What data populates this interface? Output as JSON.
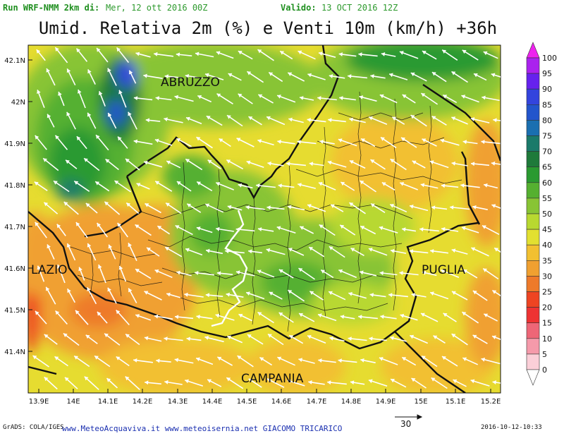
{
  "header": {
    "run_label": "Run WRF-NMM 2km di:",
    "run_value": "Mer, 12 ott 2016 00Z",
    "valid_label": "Valido:",
    "valid_value": "13 OCT 2016 12Z"
  },
  "title": "Umid. Relativa 2m (%) e Venti 10m (km/h) +36h",
  "lat_ticks": [
    "42.1N",
    "42N",
    "41.9N",
    "41.8N",
    "41.7N",
    "41.6N",
    "41.5N",
    "41.4N"
  ],
  "lon_ticks": [
    "13.9E",
    "14E",
    "14.1E",
    "14.2E",
    "14.3E",
    "14.4E",
    "14.5E",
    "14.6E",
    "14.7E",
    "14.8E",
    "14.9E",
    "15E",
    "15.1E",
    "15.2E"
  ],
  "regions": [
    "ABRUZZO",
    "LAZIO",
    "PUGLIA",
    "CAMPANIA"
  ],
  "legend": {
    "labels": [
      "100",
      "95",
      "90",
      "85",
      "80",
      "75",
      "70",
      "65",
      "60",
      "55",
      "50",
      "45",
      "40",
      "35",
      "30",
      "25",
      "20",
      "15",
      "10",
      "5",
      "0"
    ],
    "colors": [
      "#ee22ee",
      "#aa22ee",
      "#6622ee",
      "#3344dd",
      "#2255cc",
      "#1a6fb0",
      "#1a7a6a",
      "#1f7a3a",
      "#2a9a30",
      "#55b030",
      "#88c434",
      "#b8d830",
      "#e2e030",
      "#f2c030",
      "#f0a030",
      "#ee7a2a",
      "#ee4422",
      "#ee3333",
      "#ee6677",
      "#f59aaa",
      "#fbcfd8"
    ]
  },
  "wind_scale": "30",
  "footer": {
    "grads": "GrADS: COLA/IGES",
    "credit": "www.MeteoAcquaviva.it www.meteoisernia.net GIACOMO TRICARICO",
    "date": "2016-10-12-10:33"
  }
}
